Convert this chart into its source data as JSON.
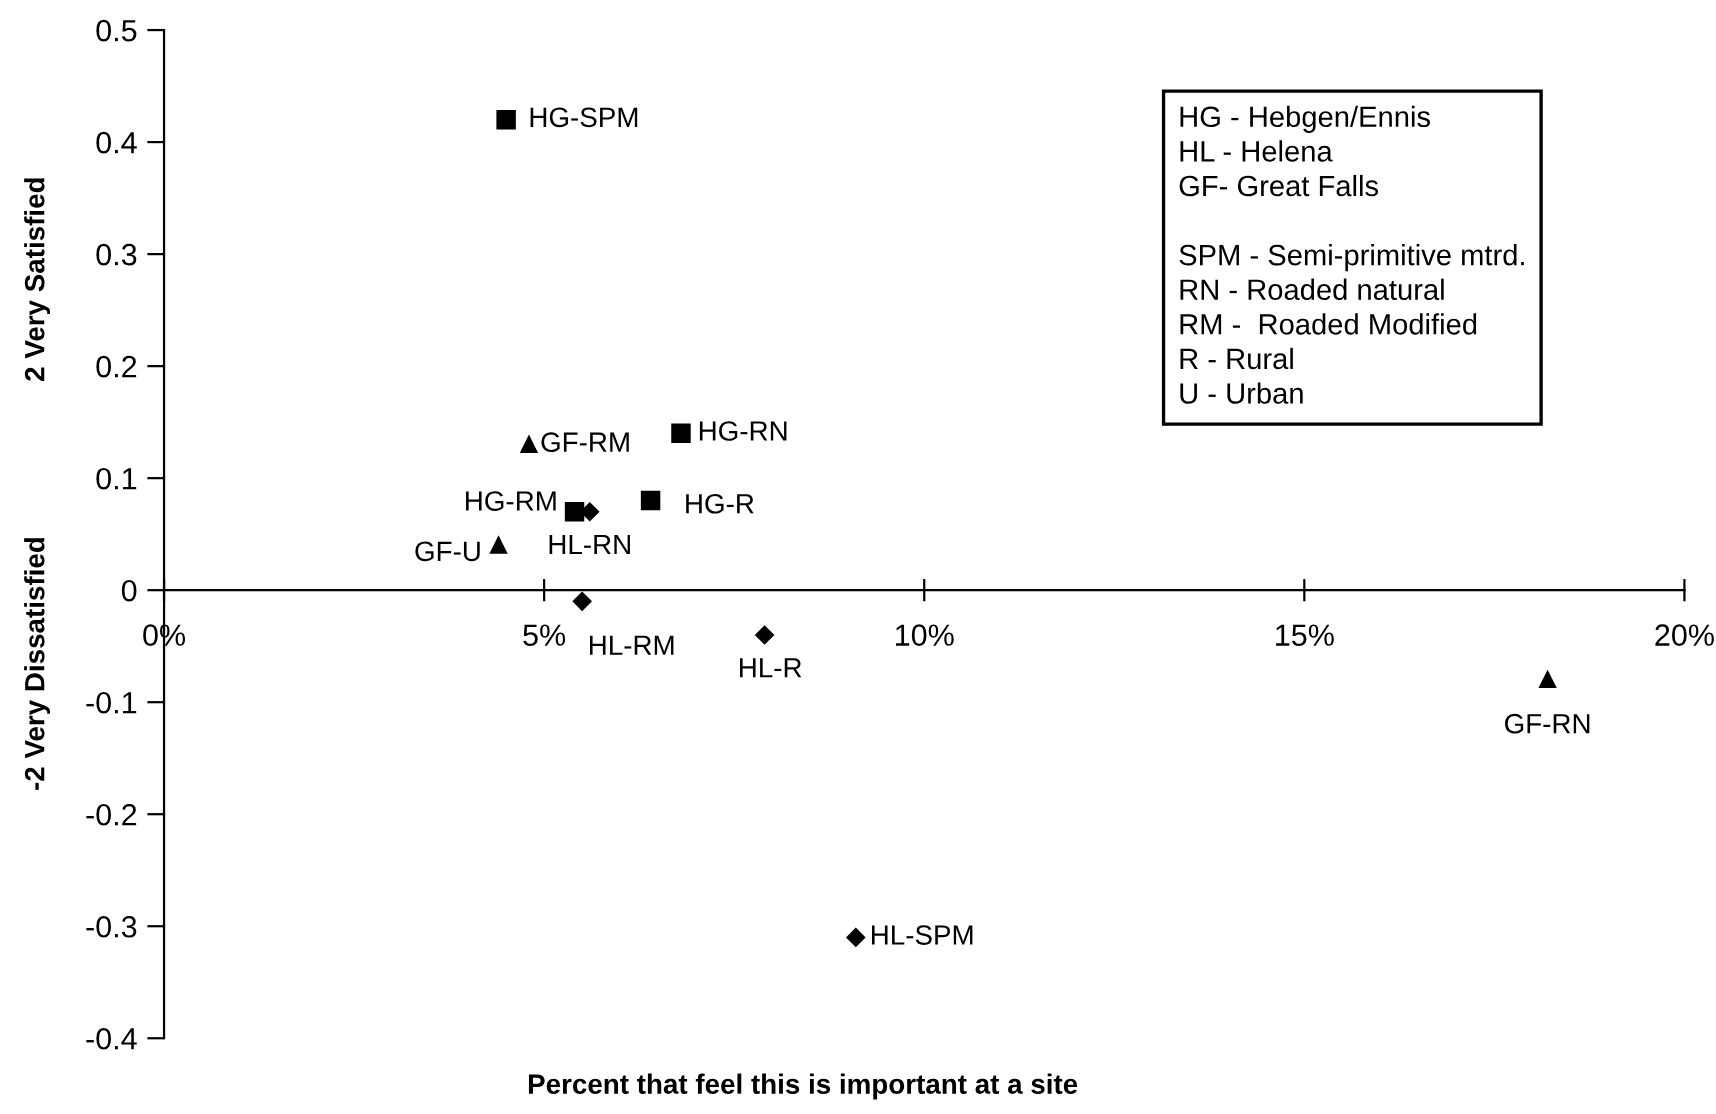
{
  "chart_data": {
    "type": "scatter",
    "xlabel": "Percent that feel this is important at a site",
    "ylabel": "-2 Very Dissatisfied                    2 Very Satisfied",
    "xlim": [
      0,
      20
    ],
    "ylim": [
      -0.4,
      0.5
    ],
    "xticks": [
      {
        "value": 0,
        "label": "0%"
      },
      {
        "value": 5,
        "label": "5%"
      },
      {
        "value": 10,
        "label": "10%"
      },
      {
        "value": 15,
        "label": "15%"
      },
      {
        "value": 20,
        "label": "20%"
      }
    ],
    "yticks": [
      -0.4,
      -0.3,
      -0.2,
      -0.1,
      0,
      0.1,
      0.2,
      0.3,
      0.4,
      0.5
    ],
    "grid": false,
    "legend": false,
    "series": [
      {
        "marker": "square",
        "color": "#000000",
        "x": [
          4.5,
          6.8,
          5.4,
          6.4
        ],
        "values": [
          0.42,
          0.14,
          0.07,
          0.08
        ],
        "value_labels": [
          "HG-SPM",
          "HG-RN",
          "HG-RM",
          "HG-R"
        ]
      },
      {
        "marker": "triangle",
        "color": "#000000",
        "x": [
          4.8,
          4.4,
          18.2
        ],
        "values": [
          0.13,
          0.04,
          -0.08
        ],
        "value_labels": [
          "GF-RM",
          "GF-U",
          "GF-RN"
        ]
      },
      {
        "marker": "diamond",
        "color": "#000000",
        "x": [
          5.6,
          5.5,
          7.9,
          9.1
        ],
        "values": [
          0.07,
          -0.01,
          -0.04,
          -0.31
        ],
        "value_labels": [
          "HL-RN",
          "HL-RM",
          "HL-R",
          "HL-SPM"
        ]
      }
    ],
    "annotations": [
      "HG - Hebgen/Ennis\nHL - Helena\nGF- Great Falls\n\nSPM - Semi-primitive mtrd.\nRN - Roaded natural\nRM -  Roaded Modified\nR - Rural\nU - Urban"
    ]
  }
}
